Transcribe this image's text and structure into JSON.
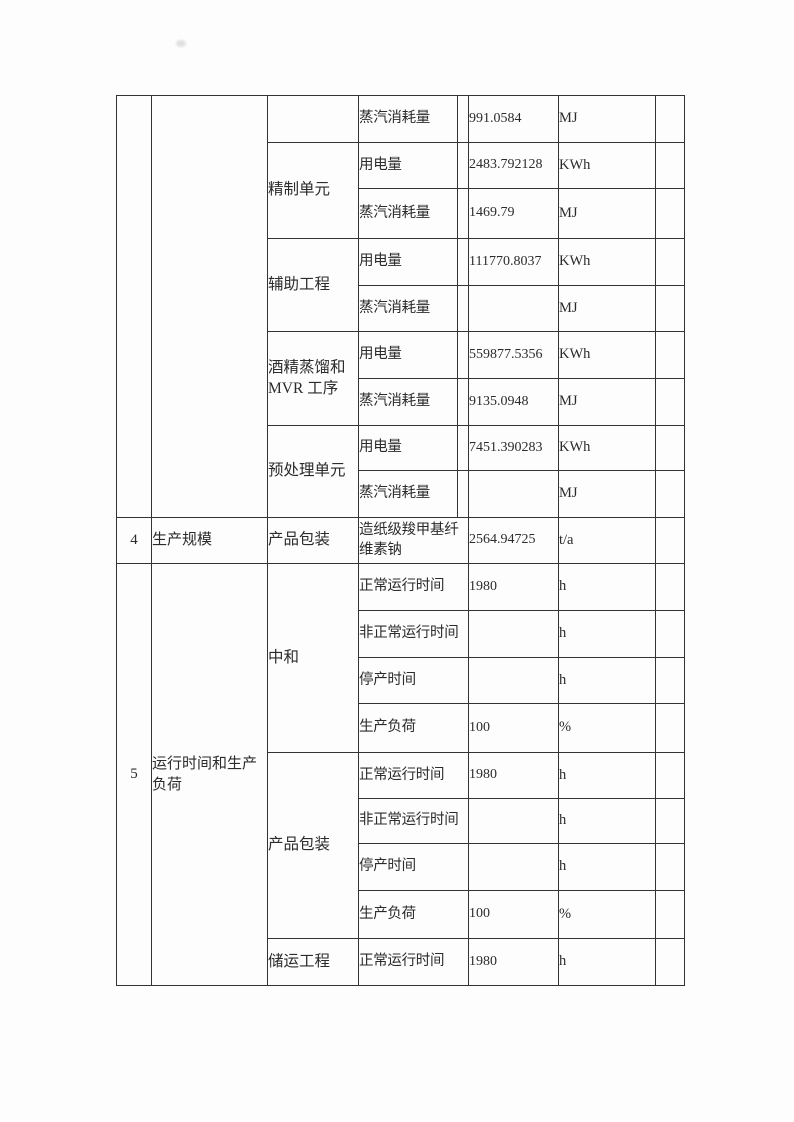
{
  "colors": {
    "page_background": "#fdfdfd",
    "table_border": "#333333",
    "text": "#2b2b2b"
  },
  "table": {
    "description_labels": {
      "electricity": "用电量",
      "steam": "蒸汽消耗量"
    },
    "rows": [
      {
        "cells": [
          {
            "k": "no",
            "rs": 9,
            "t": ""
          },
          {
            "k": "cat",
            "rs": 9,
            "t": ""
          },
          {
            "k": "sec",
            "t": ""
          },
          {
            "k": "param",
            "t": "蒸汽消耗量"
          },
          {
            "k": "narrow",
            "t": ""
          },
          {
            "k": "value",
            "t": "991.0584"
          },
          {
            "k": "unit",
            "t": "MJ"
          },
          {
            "k": "extra",
            "t": ""
          }
        ]
      },
      {
        "cells": [
          {
            "k": "sec",
            "rs": 2,
            "t": "精制单元"
          },
          {
            "k": "param",
            "t": "用电量"
          },
          {
            "k": "narrow",
            "t": ""
          },
          {
            "k": "value",
            "t": "2483.792128"
          },
          {
            "k": "unit",
            "t": "KWh"
          },
          {
            "k": "extra",
            "t": ""
          }
        ]
      },
      {
        "cells": [
          {
            "k": "param",
            "t": "蒸汽消耗量"
          },
          {
            "k": "narrow",
            "t": ""
          },
          {
            "k": "value",
            "t": "1469.79"
          },
          {
            "k": "unit",
            "t": "MJ"
          },
          {
            "k": "extra",
            "t": ""
          }
        ]
      },
      {
        "cells": [
          {
            "k": "sec",
            "rs": 2,
            "t": "辅助工程"
          },
          {
            "k": "param",
            "t": "用电量"
          },
          {
            "k": "narrow",
            "t": ""
          },
          {
            "k": "value",
            "t": "111770.8037"
          },
          {
            "k": "unit",
            "t": "KWh"
          },
          {
            "k": "extra",
            "t": ""
          }
        ]
      },
      {
        "cells": [
          {
            "k": "param",
            "t": "蒸汽消耗量"
          },
          {
            "k": "narrow",
            "t": ""
          },
          {
            "k": "value",
            "t": ""
          },
          {
            "k": "unit",
            "t": "MJ"
          },
          {
            "k": "extra",
            "t": ""
          }
        ]
      },
      {
        "cells": [
          {
            "k": "sec",
            "rs": 2,
            "t": "酒精蒸馏和MVR 工序"
          },
          {
            "k": "param",
            "t": "用电量"
          },
          {
            "k": "narrow",
            "t": ""
          },
          {
            "k": "value",
            "t": "559877.5356"
          },
          {
            "k": "unit",
            "t": "KWh"
          },
          {
            "k": "extra",
            "t": ""
          }
        ]
      },
      {
        "cells": [
          {
            "k": "param",
            "t": "蒸汽消耗量"
          },
          {
            "k": "narrow",
            "t": ""
          },
          {
            "k": "value",
            "t": "9135.0948"
          },
          {
            "k": "unit",
            "t": "MJ"
          },
          {
            "k": "extra",
            "t": ""
          }
        ]
      },
      {
        "cells": [
          {
            "k": "sec",
            "rs": 2,
            "t": "预处理单元"
          },
          {
            "k": "param",
            "t": "用电量"
          },
          {
            "k": "narrow",
            "t": ""
          },
          {
            "k": "value",
            "t": "7451.390283"
          },
          {
            "k": "unit",
            "t": "KWh"
          },
          {
            "k": "extra",
            "t": ""
          }
        ]
      },
      {
        "cells": [
          {
            "k": "param",
            "t": "蒸汽消耗量"
          },
          {
            "k": "narrow",
            "t": ""
          },
          {
            "k": "value",
            "t": ""
          },
          {
            "k": "unit",
            "t": "MJ"
          },
          {
            "k": "extra",
            "t": ""
          }
        ]
      },
      {
        "cells": [
          {
            "k": "no",
            "t": "4"
          },
          {
            "k": "cat",
            "t": "生产规模"
          },
          {
            "k": "sec",
            "t": "产品包装"
          },
          {
            "k": "param",
            "cs": 2,
            "t": "造纸级羧甲基纤维素钠"
          },
          {
            "k": "value",
            "t": "2564.94725"
          },
          {
            "k": "unit",
            "t": "t/a"
          },
          {
            "k": "extra",
            "t": ""
          }
        ]
      },
      {
        "cells": [
          {
            "k": "no",
            "rs": 9,
            "t": "5"
          },
          {
            "k": "cat",
            "rs": 9,
            "t": "运行时间和生产负荷"
          },
          {
            "k": "sec",
            "rs": 4,
            "t": "中和"
          },
          {
            "k": "param",
            "cs": 2,
            "t": "正常运行时间"
          },
          {
            "k": "value",
            "t": "1980"
          },
          {
            "k": "unit",
            "t": "h"
          },
          {
            "k": "extra",
            "t": ""
          }
        ]
      },
      {
        "cells": [
          {
            "k": "param",
            "cs": 2,
            "t": "非正常运行时间"
          },
          {
            "k": "value",
            "t": ""
          },
          {
            "k": "unit",
            "t": "h"
          },
          {
            "k": "extra",
            "t": ""
          }
        ]
      },
      {
        "cells": [
          {
            "k": "param",
            "cs": 2,
            "t": "停产时间"
          },
          {
            "k": "value",
            "t": ""
          },
          {
            "k": "unit",
            "t": "h"
          },
          {
            "k": "extra",
            "t": ""
          }
        ]
      },
      {
        "cells": [
          {
            "k": "param",
            "cs": 2,
            "t": "生产负荷"
          },
          {
            "k": "value",
            "t": "100"
          },
          {
            "k": "unit",
            "t": "%"
          },
          {
            "k": "extra",
            "t": ""
          }
        ]
      },
      {
        "cells": [
          {
            "k": "sec",
            "rs": 4,
            "t": "产品包装"
          },
          {
            "k": "param",
            "cs": 2,
            "t": "正常运行时间"
          },
          {
            "k": "value",
            "t": "1980"
          },
          {
            "k": "unit",
            "t": "h"
          },
          {
            "k": "extra",
            "t": ""
          }
        ]
      },
      {
        "cells": [
          {
            "k": "param",
            "cs": 2,
            "t": "非正常运行时间"
          },
          {
            "k": "value",
            "t": ""
          },
          {
            "k": "unit",
            "t": "h"
          },
          {
            "k": "extra",
            "t": ""
          }
        ]
      },
      {
        "cells": [
          {
            "k": "param",
            "cs": 2,
            "t": "停产时间"
          },
          {
            "k": "value",
            "t": ""
          },
          {
            "k": "unit",
            "t": "h"
          },
          {
            "k": "extra",
            "t": ""
          }
        ]
      },
      {
        "cells": [
          {
            "k": "param",
            "cs": 2,
            "t": "生产负荷"
          },
          {
            "k": "value",
            "t": "100"
          },
          {
            "k": "unit",
            "t": "%"
          },
          {
            "k": "extra",
            "t": ""
          }
        ]
      },
      {
        "cells": [
          {
            "k": "sec",
            "t": "储运工程"
          },
          {
            "k": "param",
            "cs": 2,
            "t": "正常运行时间"
          },
          {
            "k": "value",
            "t": "1980"
          },
          {
            "k": "unit",
            "t": "h"
          },
          {
            "k": "extra",
            "t": ""
          }
        ]
      }
    ]
  }
}
